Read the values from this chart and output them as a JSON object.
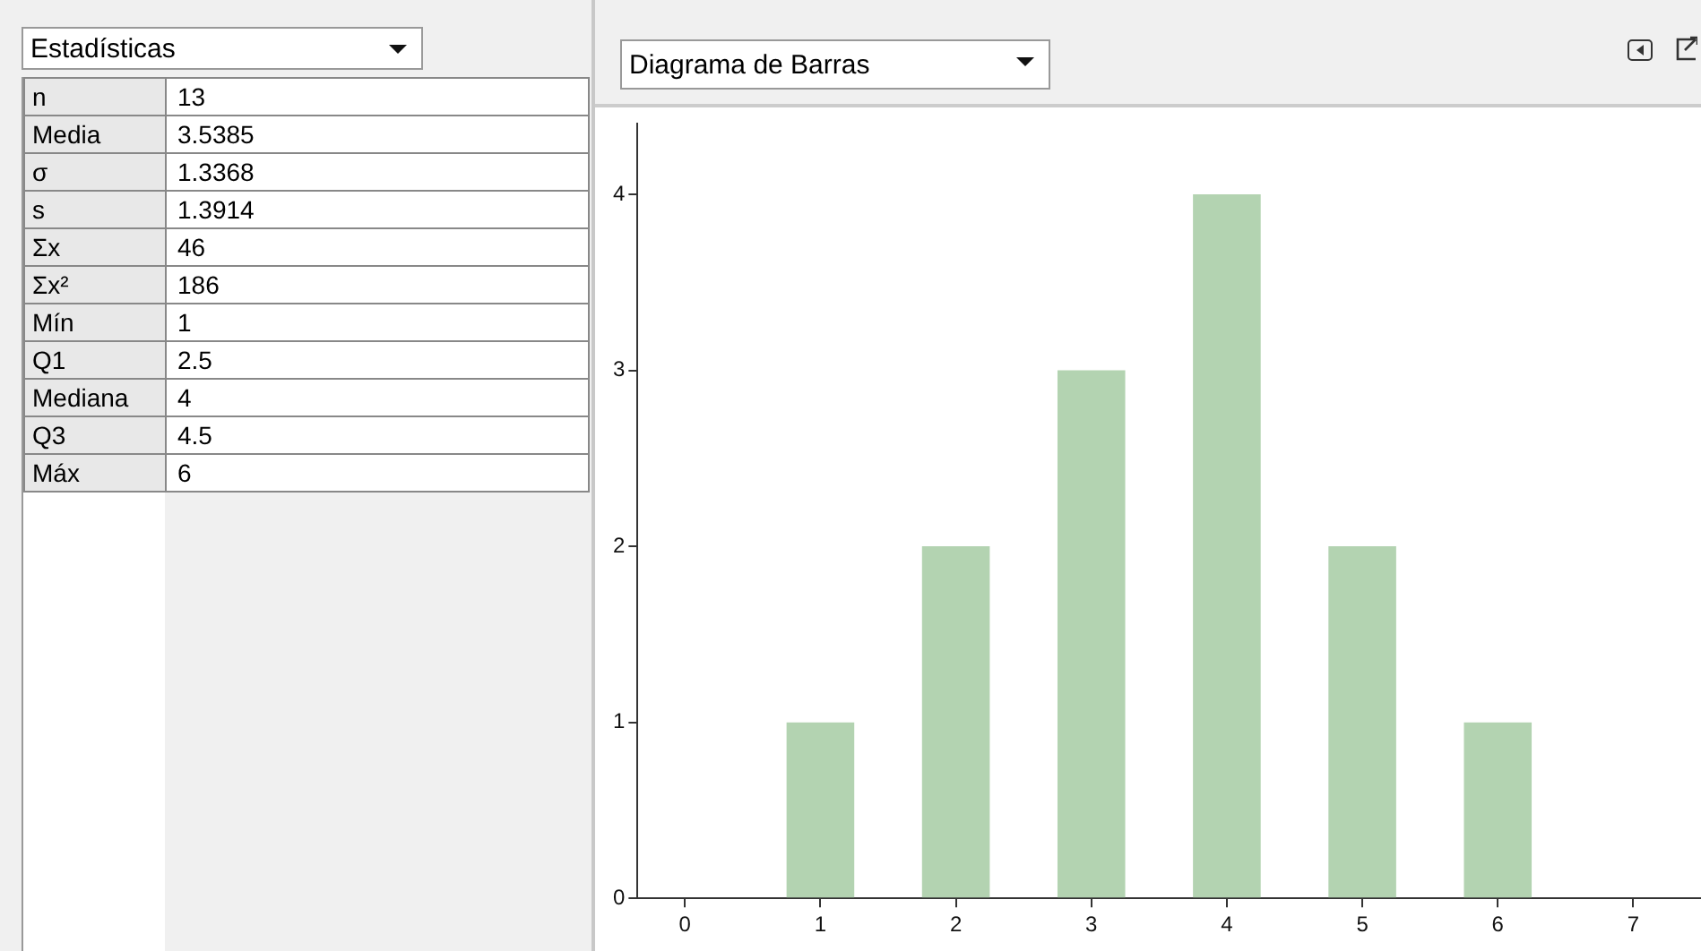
{
  "chart_data": [
    {
      "type": "other",
      "title": "Estadísticas",
      "annotations": [
        "n",
        "13",
        "Media",
        "3.5385",
        "σ",
        "1.3368",
        "s",
        "1.3914",
        "Σx",
        "46",
        "Σx²",
        "186",
        "Mín",
        "1",
        "Q1",
        "2.5",
        "Mediana",
        "4",
        "Q3",
        "4.5",
        "Máx",
        "6"
      ]
    },
    {
      "type": "bar",
      "title": "Diagrama de Barras",
      "x": [
        1,
        2,
        3,
        4,
        5,
        6
      ],
      "values": [
        1,
        2,
        3,
        4,
        2,
        1
      ],
      "color": "#b3d3b1",
      "xlim": [
        -0.35,
        7.5
      ],
      "xticks": [
        0,
        1,
        2,
        3,
        4,
        5,
        6,
        7
      ],
      "ylim": [
        0,
        4.4
      ],
      "yticks": [
        0,
        1,
        2,
        3,
        4
      ],
      "grid": false,
      "legend": false
    }
  ]
}
